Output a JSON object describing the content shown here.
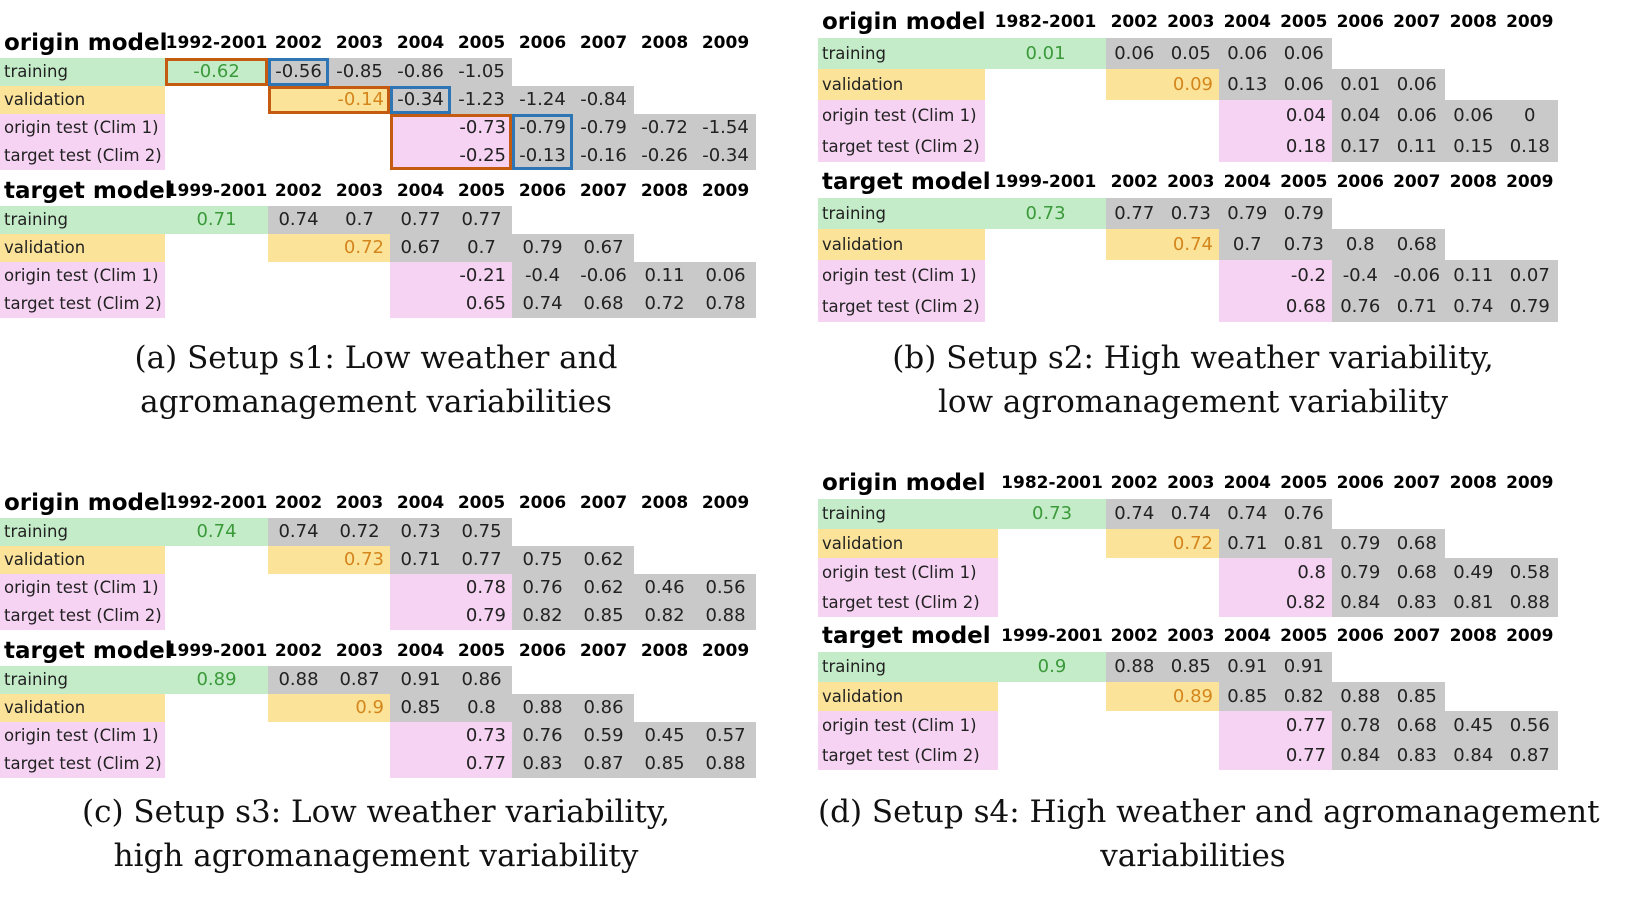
{
  "panels": [
    {
      "caption": [
        "(a) Setup s1: Low weather and",
        "agromanagement variabilities"
      ],
      "blocks": [
        {
          "title": "origin model",
          "headers": [
            "1992-2001",
            "2002",
            "2003",
            "2004",
            "2005",
            "2006",
            "2007",
            "2008",
            "2009"
          ],
          "rows": [
            {
              "label": "training",
              "values": [
                "-0.62",
                "-0.56",
                "-0.85",
                "-0.86",
                "-1.05",
                "",
                "",
                "",
                ""
              ]
            },
            {
              "label": "validation",
              "values": [
                "",
                "",
                "-0.14",
                "-0.34",
                "-1.23",
                "-1.24",
                "-0.84",
                "",
                ""
              ]
            },
            {
              "label": "origin test (Clim 1)",
              "values": [
                "",
                "",
                "",
                "",
                "-0.73",
                "-0.79",
                "-0.79",
                "-0.72",
                "-1.54"
              ]
            },
            {
              "label": "target test (Clim 2)",
              "values": [
                "",
                "",
                "",
                "",
                "-0.25",
                "-0.13",
                "-0.16",
                "-0.26",
                "-0.34"
              ]
            }
          ]
        },
        {
          "title": "target model",
          "headers": [
            "1999-2001",
            "2002",
            "2003",
            "2004",
            "2005",
            "2006",
            "2007",
            "2008",
            "2009"
          ],
          "rows": [
            {
              "label": "training",
              "values": [
                "0.71",
                "0.74",
                "0.7",
                "0.77",
                "0.77",
                "",
                "",
                "",
                ""
              ]
            },
            {
              "label": "validation",
              "values": [
                "",
                "",
                "0.72",
                "0.67",
                "0.7",
                "0.79",
                "0.67",
                "",
                ""
              ]
            },
            {
              "label": "origin test (Clim 1)",
              "values": [
                "",
                "",
                "",
                "",
                "-0.21",
                "-0.4",
                "-0.06",
                "0.11",
                "0.06"
              ]
            },
            {
              "label": "target test (Clim 2)",
              "values": [
                "",
                "",
                "",
                "",
                "0.65",
                "0.74",
                "0.68",
                "0.72",
                "0.78"
              ]
            }
          ]
        }
      ]
    },
    {
      "caption": [
        "(b) Setup s2: High weather variability,",
        "low agromanagement variability"
      ],
      "blocks": [
        {
          "title": "origin model",
          "headers": [
            "1982-2001",
            "2002",
            "2003",
            "2004",
            "2005",
            "2006",
            "2007",
            "2008",
            "2009"
          ],
          "rows": [
            {
              "label": "training",
              "values": [
                "0.01",
                "0.06",
                "0.05",
                "0.06",
                "0.06",
                "",
                "",
                "",
                ""
              ]
            },
            {
              "label": "validation",
              "values": [
                "",
                "",
                "0.09",
                "0.13",
                "0.06",
                "0.01",
                "0.06",
                "",
                ""
              ]
            },
            {
              "label": "origin test (Clim 1)",
              "values": [
                "",
                "",
                "",
                "",
                "0.04",
                "0.04",
                "0.06",
                "0.06",
                "0"
              ]
            },
            {
              "label": "target test (Clim 2)",
              "values": [
                "",
                "",
                "",
                "",
                "0.18",
                "0.17",
                "0.11",
                "0.15",
                "0.18"
              ]
            }
          ]
        },
        {
          "title": "target model",
          "headers": [
            "1999-2001",
            "2002",
            "2003",
            "2004",
            "2005",
            "2006",
            "2007",
            "2008",
            "2009"
          ],
          "rows": [
            {
              "label": "training",
              "values": [
                "0.73",
                "0.77",
                "0.73",
                "0.79",
                "0.79",
                "",
                "",
                "",
                ""
              ]
            },
            {
              "label": "validation",
              "values": [
                "",
                "",
                "0.74",
                "0.7",
                "0.73",
                "0.8",
                "0.68",
                "",
                ""
              ]
            },
            {
              "label": "origin test (Clim 1)",
              "values": [
                "",
                "",
                "",
                "",
                "-0.2",
                "-0.4",
                "-0.06",
                "0.11",
                "0.07"
              ]
            },
            {
              "label": "target test (Clim 2)",
              "values": [
                "",
                "",
                "",
                "",
                "0.68",
                "0.76",
                "0.71",
                "0.74",
                "0.79"
              ]
            }
          ]
        }
      ]
    },
    {
      "caption": [
        "(c) Setup s3: Low weather variability,",
        "high agromanagement variability"
      ],
      "blocks": [
        {
          "title": "origin model",
          "headers": [
            "1992-2001",
            "2002",
            "2003",
            "2004",
            "2005",
            "2006",
            "2007",
            "2008",
            "2009"
          ],
          "rows": [
            {
              "label": "training",
              "values": [
                "0.74",
                "0.74",
                "0.72",
                "0.73",
                "0.75",
                "",
                "",
                "",
                ""
              ]
            },
            {
              "label": "validation",
              "values": [
                "",
                "",
                "0.73",
                "0.71",
                "0.77",
                "0.75",
                "0.62",
                "",
                ""
              ]
            },
            {
              "label": "origin test (Clim 1)",
              "values": [
                "",
                "",
                "",
                "",
                "0.78",
                "0.76",
                "0.62",
                "0.46",
                "0.56"
              ]
            },
            {
              "label": "target test (Clim 2)",
              "values": [
                "",
                "",
                "",
                "",
                "0.79",
                "0.82",
                "0.85",
                "0.82",
                "0.88"
              ]
            }
          ]
        },
        {
          "title": "target model",
          "headers": [
            "1999-2001",
            "2002",
            "2003",
            "2004",
            "2005",
            "2006",
            "2007",
            "2008",
            "2009"
          ],
          "rows": [
            {
              "label": "training",
              "values": [
                "0.89",
                "0.88",
                "0.87",
                "0.91",
                "0.86",
                "",
                "",
                "",
                ""
              ]
            },
            {
              "label": "validation",
              "values": [
                "",
                "",
                "0.9",
                "0.85",
                "0.8",
                "0.88",
                "0.86",
                "",
                ""
              ]
            },
            {
              "label": "origin test (Clim 1)",
              "values": [
                "",
                "",
                "",
                "",
                "0.73",
                "0.76",
                "0.59",
                "0.45",
                "0.57"
              ]
            },
            {
              "label": "target test (Clim 2)",
              "values": [
                "",
                "",
                "",
                "",
                "0.77",
                "0.83",
                "0.87",
                "0.85",
                "0.88"
              ]
            }
          ]
        }
      ]
    },
    {
      "caption": [
        "(d) Setup s4: High weather and agromanagement",
        "variabilities"
      ],
      "blocks": [
        {
          "title": "origin model",
          "headers": [
            "1982-2001",
            "2002",
            "2003",
            "2004",
            "2005",
            "2006",
            "2007",
            "2008",
            "2009"
          ],
          "rows": [
            {
              "label": "training",
              "values": [
                "0.73",
                "0.74",
                "0.74",
                "0.74",
                "0.76",
                "",
                "",
                "",
                ""
              ]
            },
            {
              "label": "validation",
              "values": [
                "",
                "",
                "0.72",
                "0.71",
                "0.81",
                "0.79",
                "0.68",
                "",
                ""
              ]
            },
            {
              "label": "origin test (Clim 1)",
              "values": [
                "",
                "",
                "",
                "",
                "0.8",
                "0.79",
                "0.68",
                "0.49",
                "0.58"
              ]
            },
            {
              "label": "target test (Clim 2)",
              "values": [
                "",
                "",
                "",
                "",
                "0.82",
                "0.84",
                "0.83",
                "0.81",
                "0.88"
              ]
            }
          ]
        },
        {
          "title": "target model",
          "headers": [
            "1999-2001",
            "2002",
            "2003",
            "2004",
            "2005",
            "2006",
            "2007",
            "2008",
            "2009"
          ],
          "rows": [
            {
              "label": "training",
              "values": [
                "0.9",
                "0.88",
                "0.85",
                "0.91",
                "0.91",
                "",
                "",
                "",
                ""
              ]
            },
            {
              "label": "validation",
              "values": [
                "",
                "",
                "0.89",
                "0.85",
                "0.82",
                "0.88",
                "0.85",
                "",
                ""
              ]
            },
            {
              "label": "origin test (Clim 1)",
              "values": [
                "",
                "",
                "",
                "",
                "0.77",
                "0.78",
                "0.68",
                "0.45",
                "0.56"
              ]
            },
            {
              "label": "target test (Clim 2)",
              "values": [
                "",
                "",
                "",
                "",
                "0.77",
                "0.84",
                "0.83",
                "0.84",
                "0.87"
              ]
            }
          ]
        }
      ]
    }
  ]
}
